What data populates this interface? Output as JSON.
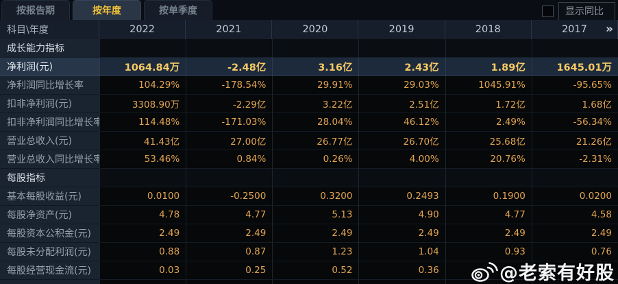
{
  "tabs": [
    {
      "label": "按报告期",
      "active": false
    },
    {
      "label": "按年度",
      "active": true
    },
    {
      "label": "按单季度",
      "active": false
    }
  ],
  "controls": {
    "show_yoy_label": "显示同比",
    "checkbox_checked": false
  },
  "table": {
    "corner_label": "科目\\年度",
    "years": [
      "2022",
      "2021",
      "2020",
      "2019",
      "2018",
      "2017"
    ],
    "more_icon": "»",
    "rows": [
      {
        "type": "section",
        "highlight": false,
        "label": "成长能力指标",
        "values": [
          "",
          "",
          "",
          "",
          "",
          ""
        ]
      },
      {
        "type": "data",
        "highlight": true,
        "label": "净利润(元)",
        "values": [
          "1064.84万",
          "-2.48亿",
          "3.16亿",
          "2.43亿",
          "1.89亿",
          "1645.01万"
        ]
      },
      {
        "type": "data",
        "highlight": false,
        "label": "净利润同比增长率",
        "values": [
          "104.29%",
          "-178.54%",
          "29.91%",
          "29.03%",
          "1045.91%",
          "-95.65%"
        ]
      },
      {
        "type": "data",
        "highlight": false,
        "label": "扣非净利润(元)",
        "values": [
          "3308.90万",
          "-2.29亿",
          "3.22亿",
          "2.51亿",
          "1.72亿",
          "1.68亿"
        ]
      },
      {
        "type": "data",
        "highlight": false,
        "label": "扣非净利润同比增长率",
        "values": [
          "114.48%",
          "-171.03%",
          "28.04%",
          "46.12%",
          "2.49%",
          "-56.34%"
        ]
      },
      {
        "type": "data",
        "highlight": false,
        "label": "营业总收入(元)",
        "values": [
          "41.43亿",
          "27.00亿",
          "26.77亿",
          "26.70亿",
          "25.68亿",
          "21.26亿"
        ]
      },
      {
        "type": "data",
        "highlight": false,
        "label": "营业总收入同比增长率",
        "values": [
          "53.46%",
          "0.84%",
          "0.26%",
          "4.00%",
          "20.76%",
          "-2.31%"
        ]
      },
      {
        "type": "section",
        "highlight": false,
        "label": "每股指标",
        "values": [
          "",
          "",
          "",
          "",
          "",
          ""
        ]
      },
      {
        "type": "data",
        "highlight": false,
        "label": "基本每股收益(元)",
        "values": [
          "0.0100",
          "-0.2500",
          "0.3200",
          "0.2493",
          "0.1900",
          "0.0200"
        ]
      },
      {
        "type": "data",
        "highlight": false,
        "label": "每股净资产(元)",
        "values": [
          "4.78",
          "4.77",
          "5.13",
          "4.90",
          "4.77",
          "4.58"
        ]
      },
      {
        "type": "data",
        "highlight": false,
        "label": "每股资本公积金(元)",
        "values": [
          "2.49",
          "2.49",
          "2.49",
          "2.49",
          "2.49",
          "2.49"
        ]
      },
      {
        "type": "data",
        "highlight": false,
        "label": "每股未分配利润(元)",
        "values": [
          "0.88",
          "0.87",
          "1.23",
          "1.04",
          "0.93",
          "0.76"
        ]
      },
      {
        "type": "data",
        "highlight": false,
        "label": "每股经营现金流(元)",
        "values": [
          "0.03",
          "0.25",
          "0.52",
          "0.36",
          "",
          ""
        ]
      }
    ]
  },
  "watermark": {
    "text": "@老索有好股"
  },
  "colors": {
    "accent_gold": "#f2c338",
    "value_orange": "#e2a452",
    "highlight_value_gold": "#f7ca63",
    "highlight_row_bg": "#1d2a3c",
    "label_column_bg": "#1a2330",
    "data_cell_bg": "#060809",
    "header_row_bg": "#161e2b",
    "tab_active_bg": "#2a3545",
    "grid_line": "#1c2530"
  }
}
